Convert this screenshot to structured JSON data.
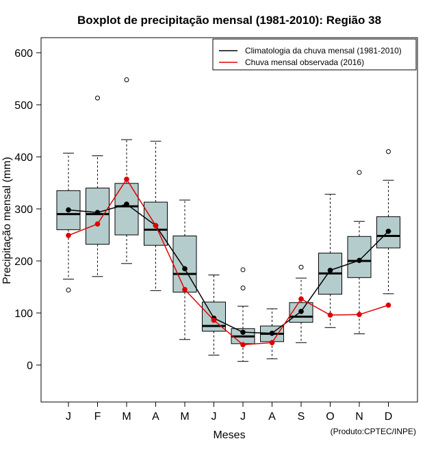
{
  "chart_data": {
    "type": "boxplot",
    "title": "Boxplot de precipitação mensal (1981-2010): Região 38",
    "xlabel": "Meses",
    "ylabel": "Precipitação mensal (mm)",
    "credit": "(Produto:CPTEC/INPE)",
    "ylim": [
      -68,
      620
    ],
    "yticks": [
      0,
      100,
      200,
      300,
      400,
      500,
      600
    ],
    "categories": [
      "J",
      "F",
      "M",
      "A",
      "M",
      "J",
      "J",
      "A",
      "S",
      "O",
      "N",
      "D"
    ],
    "box_color": "#b5cccc",
    "boxes": [
      {
        "whisker_low": 165,
        "q1": 260,
        "median": 290,
        "q3": 335,
        "whisker_high": 407,
        "outliers": [
          144
        ]
      },
      {
        "whisker_low": 170,
        "q1": 232,
        "median": 290,
        "q3": 340,
        "whisker_high": 402,
        "outliers": [
          513
        ]
      },
      {
        "whisker_low": 195,
        "q1": 250,
        "median": 305,
        "q3": 349,
        "whisker_high": 433,
        "outliers": [
          548
        ]
      },
      {
        "whisker_low": 143,
        "q1": 230,
        "median": 260,
        "q3": 313,
        "whisker_high": 430,
        "outliers": []
      },
      {
        "whisker_low": 49,
        "q1": 140,
        "median": 175,
        "q3": 248,
        "whisker_high": 317,
        "outliers": []
      },
      {
        "whisker_low": 19,
        "q1": 65,
        "median": 75,
        "q3": 121,
        "whisker_high": 173,
        "outliers": []
      },
      {
        "whisker_low": 7,
        "q1": 41,
        "median": 55,
        "q3": 70,
        "whisker_high": 113,
        "outliers": [
          148,
          183
        ]
      },
      {
        "whisker_low": 12,
        "q1": 45,
        "median": 60,
        "q3": 75,
        "whisker_high": 108,
        "outliers": []
      },
      {
        "whisker_low": 43,
        "q1": 82,
        "median": 93,
        "q3": 120,
        "whisker_high": 167,
        "outliers": [
          188
        ]
      },
      {
        "whisker_low": 72,
        "q1": 136,
        "median": 176,
        "q3": 215,
        "whisker_high": 328,
        "outliers": []
      },
      {
        "whisker_low": 60,
        "q1": 168,
        "median": 200,
        "q3": 247,
        "whisker_high": 276,
        "outliers": [
          370
        ]
      },
      {
        "whisker_low": 137,
        "q1": 225,
        "median": 248,
        "q3": 285,
        "whisker_high": 355,
        "outliers": [
          410
        ]
      }
    ],
    "series": [
      {
        "name": "Climatologia da chuva mensal (1981-2010)",
        "color": "#000000",
        "values": [
          298,
          293,
          309,
          268,
          185,
          90,
          63,
          61,
          103,
          182,
          201,
          257
        ]
      },
      {
        "name": "Chuva mensal observada (2016)",
        "color": "#e00000",
        "values": [
          249,
          271,
          357,
          268,
          145,
          86,
          39,
          43,
          127,
          96,
          97,
          115
        ]
      }
    ]
  }
}
